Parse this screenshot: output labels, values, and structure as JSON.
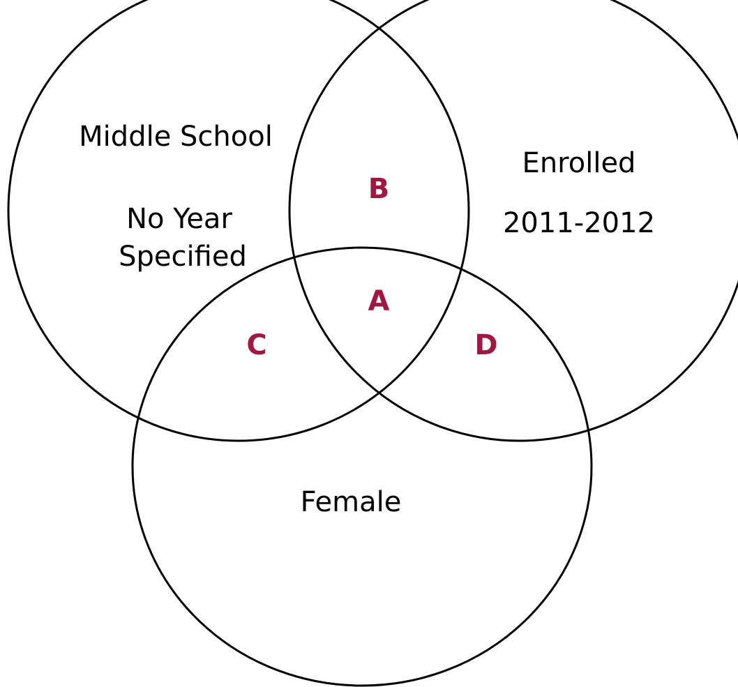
{
  "sets": [
    {
      "lines": [
        "Middle School",
        "No Year",
        "Specified"
      ]
    },
    {
      "lines": [
        "Enrolled",
        "2011-2012"
      ]
    },
    {
      "lines": [
        "Female"
      ]
    }
  ],
  "regions": [
    "B",
    "A",
    "C",
    "D"
  ]
}
